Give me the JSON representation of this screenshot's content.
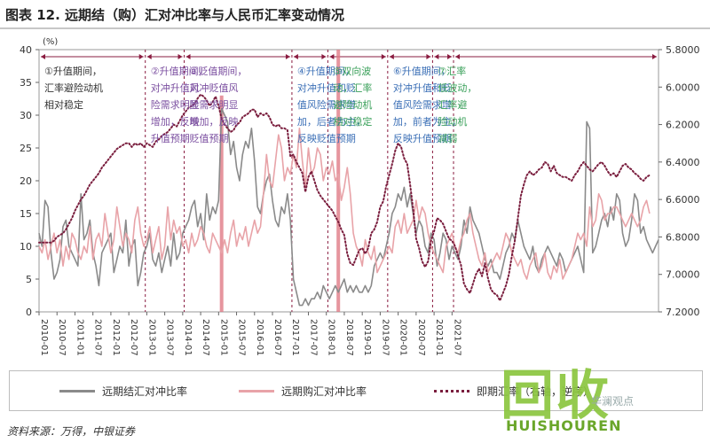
{
  "title": "图表 12. 远期结（购）汇对冲比率与人民币汇率变动情况",
  "source": "资料来源：万得，中银证券",
  "watermark": {
    "main": "回收",
    "sub": "HUISHOUREN",
    "mini": "华澜观点"
  },
  "chart_data": {
    "type": "line",
    "left_unit": "(%)",
    "y_left": {
      "lim": [
        0,
        40
      ],
      "ticks": [
        0,
        5,
        10,
        15,
        20,
        25,
        30,
        35,
        40
      ]
    },
    "y_right": {
      "lim": [
        5.8,
        7.2
      ],
      "inverted": true,
      "ticks": [
        "5.8000",
        "6.0000",
        "6.2000",
        "6.4000",
        "6.6000",
        "6.8000",
        "7.0000",
        "7.2000"
      ]
    },
    "x_ticks": [
      "2010-01",
      "2010-07",
      "2011-01",
      "2011-07",
      "2012-01",
      "2012-07",
      "2013-01",
      "2013-07",
      "2014-01",
      "2014-07",
      "2015-01",
      "2015-07",
      "2016-01",
      "2016-07",
      "2017-01",
      "2017-07",
      "2018-01",
      "2018-07",
      "2019-01",
      "2019-07",
      "2020-01",
      "2020-07",
      "2021-01",
      "2021-07"
    ],
    "period_dividers": [
      35.5,
      48.5,
      84.5,
      96.5,
      116.5,
      131.5,
      138.5
    ],
    "annotations": [
      {
        "lines": [
          "①升值期间，",
          "汇率避险动机",
          "相对稳定"
        ],
        "color": "#333333"
      },
      {
        "lines": [
          "②升值期间，",
          "对冲升值风",
          "险需求明显",
          "增加，反映",
          "升值预期"
        ],
        "color": "#7b4fa0"
      },
      {
        "lines": [
          "③贬值期间，",
          "对冲贬值风",
          "险需求明显",
          "增加，反映",
          "贬值预期"
        ],
        "color": "#7b4fa0"
      },
      {
        "lines": [
          "④升值期间，",
          "对冲升值和贬",
          "值风险需求增",
          "加，后者为主，",
          "反映贬值预期"
        ],
        "color": "#3b6fb6"
      },
      {
        "lines": [
          "⑤双向波",
          "动，汇率",
          "避险动机",
          "相对稳定"
        ],
        "color": "#3aa05a"
      },
      {
        "lines": [
          "⑥升值期间，",
          "对冲升值和贬",
          "值风险需求增",
          "加，前者为主，",
          "反映升值预期"
        ],
        "color": "#3b6fb6"
      },
      {
        "lines": [
          "⑦汇率",
          "低波动，",
          "汇率避",
          "险动机",
          "减弱"
        ],
        "color": "#3aa05a"
      }
    ],
    "series": [
      {
        "name": "远期结汇对冲比率",
        "axis": "left",
        "color": "#8a8a8a",
        "style": "solid",
        "values": [
          12,
          10,
          17,
          16,
          9,
          5,
          6,
          8,
          13,
          14,
          10,
          9,
          8,
          7,
          18,
          11,
          12,
          14,
          9,
          7,
          4,
          9,
          10,
          11,
          12,
          6,
          8,
          10,
          9,
          14,
          7,
          10,
          11,
          4,
          6,
          9,
          10,
          12,
          8,
          7,
          9,
          6,
          8,
          10,
          7,
          12,
          8,
          9,
          12,
          13,
          14,
          16,
          17,
          13,
          15,
          11,
          18,
          14,
          16,
          15,
          17,
          31,
          30,
          29,
          24,
          26,
          22,
          20,
          24,
          26,
          25,
          28,
          23,
          16,
          15,
          18,
          20,
          21,
          17,
          14,
          13,
          16,
          15,
          18,
          14,
          5,
          3,
          1,
          1,
          2,
          1,
          2,
          2,
          3,
          2,
          4,
          3,
          2,
          3,
          4,
          3,
          4,
          5,
          3,
          4,
          3,
          4,
          3,
          3,
          4,
          3,
          4,
          7,
          8,
          9,
          8,
          10,
          12,
          15,
          16,
          18,
          17,
          19,
          16,
          18,
          15,
          12,
          14,
          13,
          10,
          9,
          12,
          11,
          7,
          9,
          12,
          11,
          8,
          10,
          9,
          8,
          10,
          14,
          12,
          16,
          14,
          13,
          12,
          10,
          8,
          7,
          8,
          6,
          6,
          5,
          7,
          9,
          10,
          12,
          11,
          14,
          12,
          10,
          9,
          8,
          10,
          7,
          6,
          8,
          9,
          10,
          9,
          8,
          7,
          9,
          8,
          6,
          7,
          8,
          9,
          10,
          8,
          6,
          29,
          28,
          9,
          10,
          12,
          14,
          15,
          13,
          16,
          14,
          18,
          17,
          12,
          10,
          11,
          14,
          18,
          17,
          12,
          13,
          11,
          10,
          9,
          10,
          11
        ]
      },
      {
        "name": "远期购汇对冲比率",
        "axis": "left",
        "color": "#e8a3a8",
        "style": "solid",
        "values": [
          10,
          9,
          11,
          8,
          10,
          12,
          9,
          11,
          7,
          10,
          8,
          12,
          11,
          9,
          8,
          10,
          9,
          13,
          8,
          11,
          12,
          10,
          15,
          12,
          9,
          11,
          16,
          13,
          10,
          12,
          11,
          9,
          14,
          16,
          12,
          10,
          11,
          13,
          9,
          11,
          13,
          8,
          10,
          16,
          11,
          14,
          12,
          13,
          10,
          11,
          9,
          12,
          10,
          11,
          13,
          12,
          10,
          9,
          12,
          11,
          10,
          9,
          11,
          9,
          12,
          14,
          10,
          12,
          11,
          13,
          10,
          12,
          14,
          12,
          13,
          18,
          24,
          20,
          19,
          23,
          27,
          25,
          20,
          22,
          21,
          24,
          22,
          28,
          23,
          19,
          25,
          21,
          22,
          25,
          24,
          20,
          22,
          21,
          23,
          20,
          21,
          17,
          19,
          22,
          18,
          12,
          10,
          9,
          7,
          11,
          9,
          8,
          10,
          6,
          7,
          8,
          9,
          10,
          9,
          13,
          14,
          12,
          15,
          12,
          13,
          14,
          17,
          14,
          16,
          15,
          12,
          10,
          9,
          8,
          7,
          6,
          10,
          11,
          12,
          10,
          9,
          11,
          12,
          14,
          15,
          12,
          10,
          8,
          7,
          9,
          6,
          7,
          8,
          9,
          8,
          10,
          12,
          11,
          9,
          8,
          7,
          8,
          6,
          5,
          7,
          8,
          9,
          6,
          7,
          9,
          6,
          5,
          7,
          6,
          8,
          5,
          6,
          7,
          8,
          10,
          12,
          11,
          12,
          10,
          16,
          13,
          14,
          18,
          17,
          14,
          15,
          15,
          16,
          16,
          15,
          14,
          13,
          14,
          15,
          14,
          13,
          14,
          16,
          17,
          15
        ]
      },
      {
        "name": "即期汇率（右轴，逆序）",
        "axis": "right",
        "color": "#7a1e3e",
        "style": "dotted",
        "values": [
          6.83,
          6.83,
          6.83,
          6.83,
          6.83,
          6.82,
          6.8,
          6.79,
          6.78,
          6.76,
          6.73,
          6.7,
          6.66,
          6.63,
          6.6,
          6.58,
          6.55,
          6.52,
          6.5,
          6.48,
          6.46,
          6.43,
          6.41,
          6.39,
          6.37,
          6.35,
          6.33,
          6.32,
          6.31,
          6.3,
          6.3,
          6.32,
          6.3,
          6.31,
          6.3,
          6.32,
          6.3,
          6.31,
          6.32,
          6.29,
          6.28,
          6.26,
          6.25,
          6.24,
          6.22,
          6.2,
          6.21,
          6.18,
          6.15,
          6.13,
          6.11,
          6.1,
          6.09,
          6.06,
          6.04,
          6.05,
          6.07,
          6.1,
          6.08,
          6.05,
          6.1,
          6.17,
          6.2,
          6.22,
          6.24,
          6.23,
          6.2,
          6.19,
          6.16,
          6.15,
          6.14,
          6.12,
          6.12,
          6.16,
          6.14,
          6.15,
          6.14,
          6.16,
          6.2,
          6.21,
          6.2,
          6.22,
          6.22,
          6.23,
          6.37,
          6.36,
          6.4,
          6.43,
          6.46,
          6.56,
          6.48,
          6.45,
          6.5,
          6.55,
          6.58,
          6.6,
          6.62,
          6.64,
          6.66,
          6.69,
          6.72,
          6.76,
          6.79,
          6.89,
          6.94,
          6.95,
          6.91,
          6.87,
          6.86,
          6.89,
          6.86,
          6.78,
          6.76,
          6.72,
          6.64,
          6.61,
          6.53,
          6.47,
          6.41,
          6.34,
          6.3,
          6.32,
          6.38,
          6.41,
          6.52,
          6.65,
          6.81,
          6.86,
          6.93,
          6.96,
          6.93,
          6.82,
          6.77,
          6.7,
          6.71,
          6.73,
          6.77,
          6.81,
          6.82,
          6.85,
          6.9,
          6.95,
          7.05,
          7.08,
          7.1,
          7.05,
          7.0,
          6.97,
          7.01,
          6.94,
          7.02,
          7.08,
          7.1,
          7.11,
          7.14,
          7.1,
          7.06,
          7.0,
          6.9,
          6.82,
          6.7,
          6.58,
          6.52,
          6.47,
          6.45,
          6.47,
          6.46,
          6.44,
          6.43,
          6.4,
          6.41,
          6.45,
          6.42,
          6.46,
          6.47,
          6.48,
          6.48,
          6.49,
          6.5,
          6.47,
          6.45,
          6.42,
          6.4,
          6.42,
          6.44,
          6.45,
          6.43,
          6.41,
          6.4,
          6.42,
          6.45,
          6.47,
          6.46,
          6.48,
          6.45,
          6.42,
          6.41,
          6.43,
          6.44,
          6.46,
          6.47,
          6.49,
          6.5,
          6.48,
          6.47
        ]
      }
    ],
    "spike_columns": [
      {
        "index": 61,
        "top": 33
      },
      {
        "index": 100,
        "top": 40
      }
    ]
  }
}
